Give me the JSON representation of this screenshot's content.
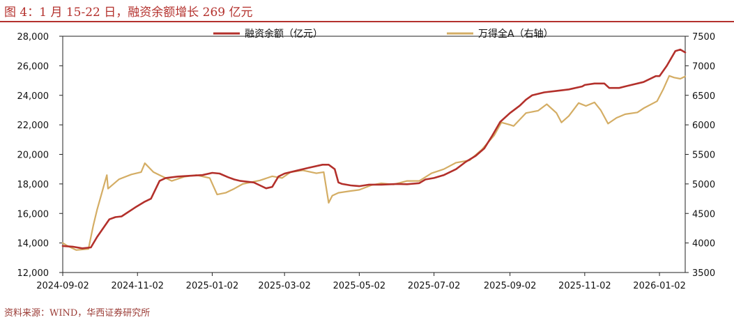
{
  "figure": {
    "title": "图 4：1 月 15-22 日，融资余额增长 269 亿元",
    "source": "资料来源：WIND，华西证券研究所"
  },
  "colors": {
    "title": "#b4312d",
    "margin_balance": "#b3302b",
    "wind_all_a": "#d4ad64",
    "axis": "#222222"
  },
  "chart_data": {
    "type": "line",
    "title": "",
    "x_tick_labels": [
      "2024-09-02",
      "2024-11-02",
      "2025-01-02",
      "2025-03-02",
      "2025-05-02",
      "2025-07-02",
      "2025-09-02",
      "2025-11-02",
      "2026-01-02"
    ],
    "xlim": [
      "2024-09-02",
      "2026-01-23"
    ],
    "y_left": {
      "label": "",
      "ylim": [
        12000,
        28000
      ],
      "ticks": [
        "12,000",
        "14,000",
        "16,000",
        "18,000",
        "20,000",
        "22,000",
        "24,000",
        "26,000",
        "28,000"
      ]
    },
    "y_right": {
      "label": "",
      "ylim": [
        3500,
        7500
      ],
      "ticks": [
        "3500",
        "4000",
        "4500",
        "5000",
        "5500",
        "6000",
        "6500",
        "7000",
        "7500"
      ]
    },
    "grid": false,
    "legend": "top",
    "series": [
      {
        "name": "融资余额（亿元）",
        "axis": "left",
        "color": "#b3302b",
        "points": [
          [
            "2024-09-02",
            13800
          ],
          [
            "2024-09-10",
            13750
          ],
          [
            "2024-09-18",
            13640
          ],
          [
            "2024-09-25",
            13700
          ],
          [
            "2024-09-30",
            14400
          ],
          [
            "2024-10-10",
            15600
          ],
          [
            "2024-10-15",
            15750
          ],
          [
            "2024-10-20",
            15800
          ],
          [
            "2024-10-31",
            16400
          ],
          [
            "2024-11-08",
            16800
          ],
          [
            "2024-11-13",
            17000
          ],
          [
            "2024-11-20",
            18200
          ],
          [
            "2024-11-25",
            18400
          ],
          [
            "2024-12-05",
            18500
          ],
          [
            "2024-12-15",
            18550
          ],
          [
            "2024-12-25",
            18600
          ],
          [
            "2025-01-02",
            18750
          ],
          [
            "2025-01-08",
            18700
          ],
          [
            "2025-01-15",
            18450
          ],
          [
            "2025-01-20",
            18300
          ],
          [
            "2025-01-25",
            18200
          ],
          [
            "2025-02-05",
            18100
          ],
          [
            "2025-02-10",
            17900
          ],
          [
            "2025-02-15",
            17700
          ],
          [
            "2025-02-20",
            17800
          ],
          [
            "2025-02-25",
            18500
          ],
          [
            "2025-03-02",
            18700
          ],
          [
            "2025-03-12",
            18900
          ],
          [
            "2025-03-22",
            19100
          ],
          [
            "2025-04-02",
            19300
          ],
          [
            "2025-04-07",
            19300
          ],
          [
            "2025-04-12",
            19000
          ],
          [
            "2025-04-15",
            18100
          ],
          [
            "2025-04-18",
            18000
          ],
          [
            "2025-04-25",
            17900
          ],
          [
            "2025-05-02",
            17850
          ],
          [
            "2025-05-10",
            17950
          ],
          [
            "2025-05-20",
            17950
          ],
          [
            "2025-06-02",
            18000
          ],
          [
            "2025-06-10",
            17980
          ],
          [
            "2025-06-20",
            18050
          ],
          [
            "2025-06-25",
            18300
          ],
          [
            "2025-07-02",
            18400
          ],
          [
            "2025-07-10",
            18600
          ],
          [
            "2025-07-20",
            19000
          ],
          [
            "2025-07-28",
            19500
          ],
          [
            "2025-08-05",
            19900
          ],
          [
            "2025-08-12",
            20400
          ],
          [
            "2025-08-18",
            21200
          ],
          [
            "2025-08-25",
            22200
          ],
          [
            "2025-09-02",
            22800
          ],
          [
            "2025-09-10",
            23300
          ],
          [
            "2025-09-15",
            23700
          ],
          [
            "2025-09-20",
            24000
          ],
          [
            "2025-09-30",
            24200
          ],
          [
            "2025-10-10",
            24300
          ],
          [
            "2025-10-20",
            24400
          ],
          [
            "2025-10-31",
            24600
          ],
          [
            "2025-11-02",
            24700
          ],
          [
            "2025-11-10",
            24800
          ],
          [
            "2025-11-18",
            24800
          ],
          [
            "2025-11-22",
            24500
          ],
          [
            "2025-11-30",
            24500
          ],
          [
            "2025-12-05",
            24600
          ],
          [
            "2025-12-10",
            24700
          ],
          [
            "2025-12-20",
            24900
          ],
          [
            "2025-12-30",
            25300
          ],
          [
            "2026-01-02",
            25300
          ],
          [
            "2026-01-08",
            26000
          ],
          [
            "2026-01-15",
            27000
          ],
          [
            "2026-01-19",
            27100
          ],
          [
            "2026-01-23",
            26900
          ]
        ]
      },
      {
        "name": "万得全A（右轴）",
        "axis": "right",
        "color": "#d4ad64",
        "points": [
          [
            "2024-09-02",
            4000
          ],
          [
            "2024-09-06",
            3950
          ],
          [
            "2024-09-13",
            3880
          ],
          [
            "2024-09-23",
            3900
          ],
          [
            "2024-09-27",
            4300
          ],
          [
            "2024-09-30",
            4560
          ],
          [
            "2024-10-08",
            5150
          ],
          [
            "2024-10-09",
            4920
          ],
          [
            "2024-10-18",
            5080
          ],
          [
            "2024-10-28",
            5160
          ],
          [
            "2024-11-05",
            5200
          ],
          [
            "2024-11-08",
            5350
          ],
          [
            "2024-11-15",
            5200
          ],
          [
            "2024-11-20",
            5150
          ],
          [
            "2024-11-30",
            5050
          ],
          [
            "2024-12-10",
            5120
          ],
          [
            "2024-12-20",
            5150
          ],
          [
            "2024-12-31",
            5100
          ],
          [
            "2025-01-03",
            4960
          ],
          [
            "2025-01-06",
            4820
          ],
          [
            "2025-01-13",
            4850
          ],
          [
            "2025-01-20",
            4920
          ],
          [
            "2025-01-27",
            5000
          ],
          [
            "2025-02-10",
            5060
          ],
          [
            "2025-02-20",
            5130
          ],
          [
            "2025-02-28",
            5100
          ],
          [
            "2025-03-07",
            5200
          ],
          [
            "2025-03-17",
            5230
          ],
          [
            "2025-03-28",
            5180
          ],
          [
            "2025-04-03",
            5200
          ],
          [
            "2025-04-07",
            4680
          ],
          [
            "2025-04-10",
            4800
          ],
          [
            "2025-04-15",
            4850
          ],
          [
            "2025-04-25",
            4880
          ],
          [
            "2025-05-02",
            4900
          ],
          [
            "2025-05-12",
            4980
          ],
          [
            "2025-05-20",
            5010
          ],
          [
            "2025-05-30",
            4990
          ],
          [
            "2025-06-10",
            5050
          ],
          [
            "2025-06-20",
            5050
          ],
          [
            "2025-06-30",
            5180
          ],
          [
            "2025-07-10",
            5250
          ],
          [
            "2025-07-20",
            5360
          ],
          [
            "2025-07-31",
            5400
          ],
          [
            "2025-08-10",
            5580
          ],
          [
            "2025-08-20",
            5820
          ],
          [
            "2025-08-26",
            6040
          ],
          [
            "2025-09-02",
            6000
          ],
          [
            "2025-09-05",
            5980
          ],
          [
            "2025-09-15",
            6200
          ],
          [
            "2025-09-25",
            6240
          ],
          [
            "2025-10-02",
            6350
          ],
          [
            "2025-10-10",
            6200
          ],
          [
            "2025-10-14",
            6040
          ],
          [
            "2025-10-20",
            6150
          ],
          [
            "2025-10-28",
            6370
          ],
          [
            "2025-11-03",
            6320
          ],
          [
            "2025-11-10",
            6380
          ],
          [
            "2025-11-15",
            6250
          ],
          [
            "2025-11-21",
            6020
          ],
          [
            "2025-11-28",
            6120
          ],
          [
            "2025-12-05",
            6180
          ],
          [
            "2025-12-15",
            6210
          ],
          [
            "2025-12-20",
            6280
          ],
          [
            "2025-12-31",
            6400
          ],
          [
            "2026-01-05",
            6600
          ],
          [
            "2026-01-10",
            6830
          ],
          [
            "2026-01-14",
            6800
          ],
          [
            "2026-01-19",
            6780
          ],
          [
            "2026-01-23",
            6820
          ]
        ]
      }
    ]
  }
}
